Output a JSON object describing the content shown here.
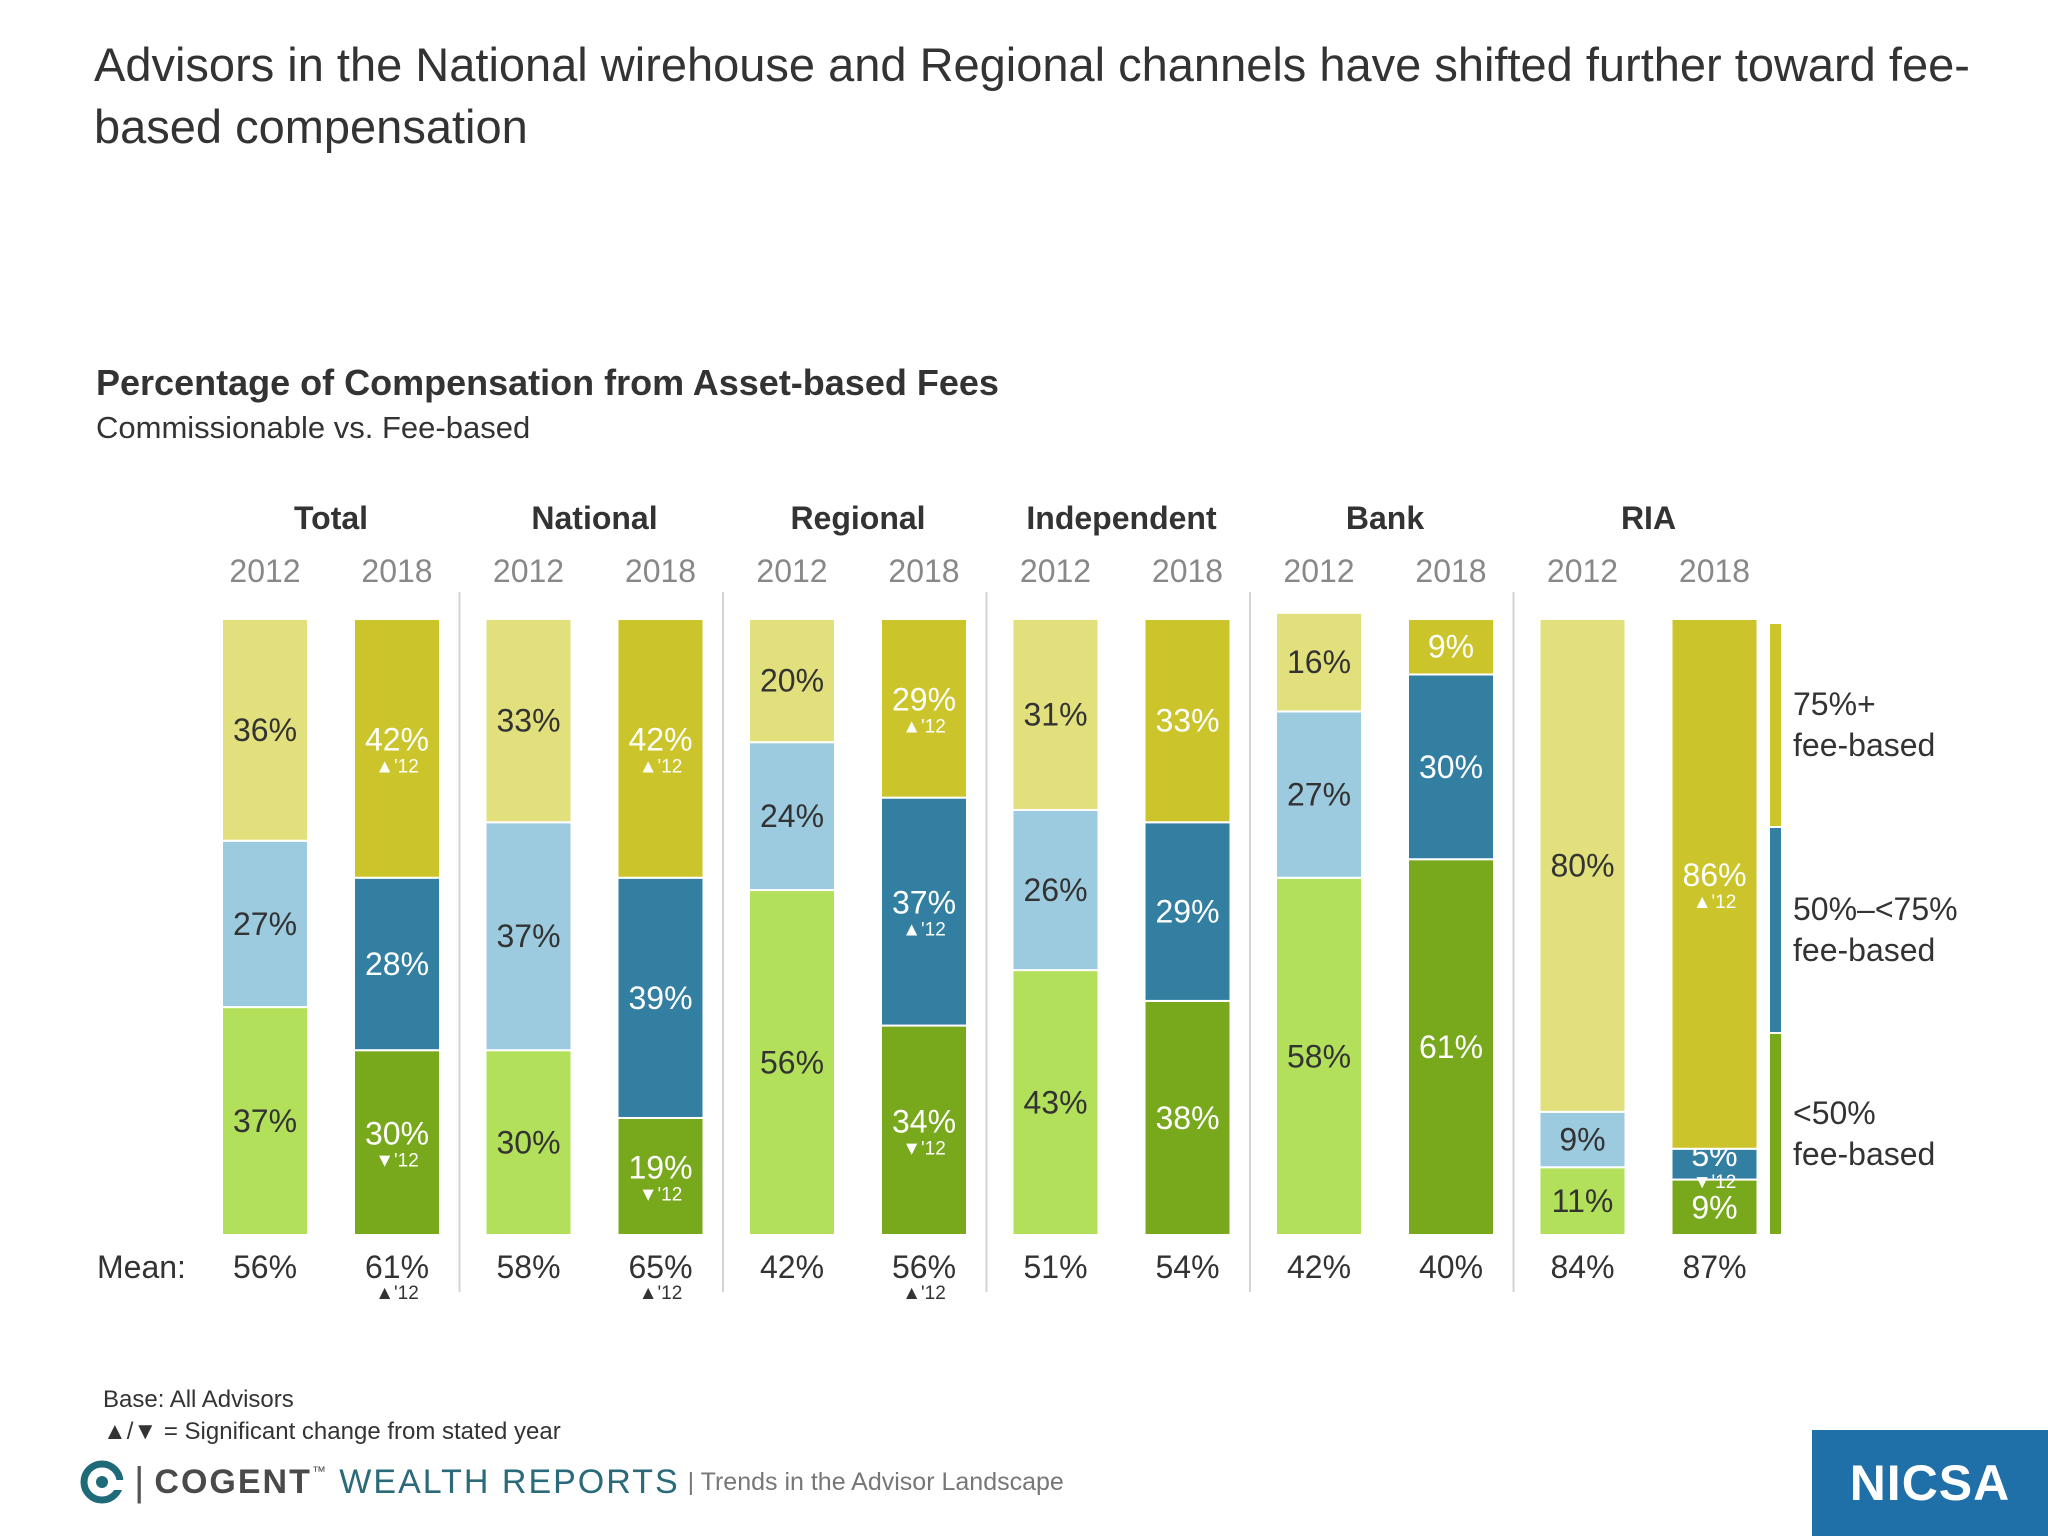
{
  "headline": "Advisors in the National wirehouse and Regional channels have shifted further toward fee-based compensation",
  "chart_data": {
    "type": "bar",
    "stacked": true,
    "title": "Percentage of Compensation from Asset-based Fees",
    "subtitle": "Commissionable vs. Fee-based",
    "groups": [
      {
        "name": "Total",
        "years": [
          {
            "year": "2012",
            "lt50": "37%",
            "mid": "27%",
            "top": "36%",
            "mean": "56%"
          },
          {
            "year": "2018",
            "lt50": "30%",
            "mid": "28%",
            "top": "42%",
            "mean": "61%",
            "lt50_note": "▼'12",
            "top_note": "▲'12",
            "mean_note": "▲'12"
          }
        ]
      },
      {
        "name": "National",
        "years": [
          {
            "year": "2012",
            "lt50": "30%",
            "mid": "37%",
            "top": "33%",
            "mean": "58%"
          },
          {
            "year": "2018",
            "lt50": "19%",
            "mid": "39%",
            "top": "42%",
            "mean": "65%",
            "lt50_note": "▼'12",
            "top_note": "▲'12",
            "mean_note": "▲'12"
          }
        ]
      },
      {
        "name": "Regional",
        "years": [
          {
            "year": "2012",
            "lt50": "56%",
            "mid": "24%",
            "top": "20%",
            "mean": "42%"
          },
          {
            "year": "2018",
            "lt50": "34%",
            "mid": "37%",
            "top": "29%",
            "mean": "56%",
            "lt50_note": "▼'12",
            "mid_note": "▲'12",
            "top_note": "▲'12",
            "mean_note": "▲'12"
          }
        ]
      },
      {
        "name": "Independent",
        "years": [
          {
            "year": "2012",
            "lt50": "43%",
            "mid": "26%",
            "top": "31%",
            "mean": "51%"
          },
          {
            "year": "2018",
            "lt50": "38%",
            "mid": "29%",
            "top": "33%",
            "mean": "54%"
          }
        ]
      },
      {
        "name": "Bank",
        "years": [
          {
            "year": "2012",
            "lt50": "58%",
            "mid": "27%",
            "top": "16%",
            "mean": "42%"
          },
          {
            "year": "2018",
            "lt50": "61%",
            "mid": "30%",
            "top": "9%",
            "mean": "40%"
          }
        ]
      },
      {
        "name": "RIA",
        "years": [
          {
            "year": "2012",
            "lt50": "11%",
            "mid": "9%",
            "top": "80%",
            "mean": "84%"
          },
          {
            "year": "2018",
            "lt50": "9%",
            "mid": "5%",
            "top": "86%",
            "mean": "87%",
            "mid_note": "▼'12",
            "top_note": "▲'12"
          }
        ]
      }
    ],
    "legend": [
      {
        "key": "top",
        "label_lines": [
          "75%+",
          "fee-based"
        ]
      },
      {
        "key": "mid",
        "label_lines": [
          "50%–<75%",
          "fee-based"
        ]
      },
      {
        "key": "lt50",
        "label_lines": [
          "<50%",
          "fee-based"
        ]
      }
    ],
    "legend_placement": "right",
    "mean_label": "Mean:",
    "colors": {
      "2012": {
        "lt50": "#b3e05a",
        "mid": "#9ccadf",
        "top": "#e2e07c"
      },
      "2018": {
        "lt50": "#78a81c",
        "mid": "#337fa2",
        "top": "#cbc42a"
      },
      "legend": {
        "lt50": "#78a81c",
        "mid": "#337fa2",
        "top": "#cbc42a"
      },
      "label_dark": "#333333",
      "label_light": "#ffffff"
    }
  },
  "footnotes": {
    "base": "Base: All Advisors",
    "significance": "▲/▼ = Significant change from stated year"
  },
  "branding": {
    "separator": "|",
    "brand_bold": "COGENT",
    "brand_tm": "™",
    "brand_light": "WEALTH REPORTS",
    "tagline": "| Trends in the Advisor Landscape",
    "partner": "NICSA"
  }
}
